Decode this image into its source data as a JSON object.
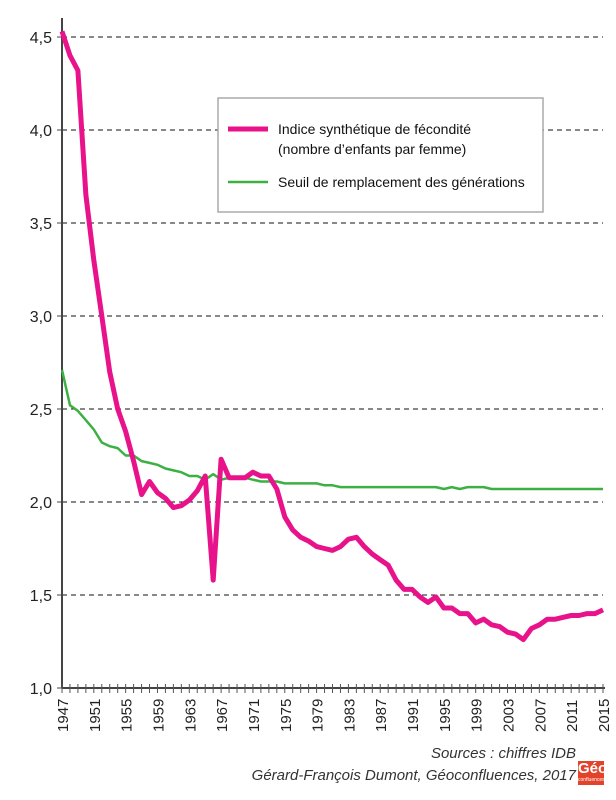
{
  "chart_data": {
    "type": "line",
    "title": "",
    "xlabel": "",
    "ylabel": "",
    "xlim": [
      1947,
      2015
    ],
    "ylim": [
      1.0,
      4.5
    ],
    "y_ticks": [
      "1,0",
      "1,5",
      "2,0",
      "2,5",
      "3,0",
      "3,5",
      "4,0",
      "4,5"
    ],
    "y_tick_values": [
      1.0,
      1.5,
      2.0,
      2.5,
      3.0,
      3.5,
      4.0,
      4.5
    ],
    "x_ticks": [
      "1947",
      "1951",
      "1955",
      "1959",
      "1963",
      "1967",
      "1971",
      "1975",
      "1979",
      "1983",
      "1987",
      "1991",
      "1995",
      "1999",
      "2003",
      "2007",
      "2011",
      "2015"
    ],
    "grid": "horizontal dashed",
    "legend_position": "top-right",
    "x": [
      1947,
      1948,
      1949,
      1950,
      1951,
      1952,
      1953,
      1954,
      1955,
      1956,
      1957,
      1958,
      1959,
      1960,
      1961,
      1962,
      1963,
      1964,
      1965,
      1966,
      1967,
      1968,
      1969,
      1970,
      1971,
      1972,
      1973,
      1974,
      1975,
      1976,
      1977,
      1978,
      1979,
      1980,
      1981,
      1982,
      1983,
      1984,
      1985,
      1986,
      1987,
      1988,
      1989,
      1990,
      1991,
      1992,
      1993,
      1994,
      1995,
      1996,
      1997,
      1998,
      1999,
      2000,
      2001,
      2002,
      2003,
      2004,
      2005,
      2006,
      2007,
      2008,
      2009,
      2010,
      2011,
      2012,
      2013,
      2014,
      2015
    ],
    "series": [
      {
        "name": "Indice synthétique de fécondité",
        "name2": "(nombre d’enfants par femme)",
        "color": "#e8128a",
        "values": [
          4.53,
          4.4,
          4.32,
          3.65,
          3.3,
          3.0,
          2.7,
          2.5,
          2.38,
          2.22,
          2.04,
          2.11,
          2.05,
          2.02,
          1.97,
          1.98,
          2.01,
          2.06,
          2.14,
          1.58,
          2.23,
          2.13,
          2.13,
          2.13,
          2.16,
          2.14,
          2.14,
          2.07,
          1.92,
          1.85,
          1.81,
          1.79,
          1.76,
          1.75,
          1.74,
          1.76,
          1.8,
          1.81,
          1.76,
          1.72,
          1.69,
          1.66,
          1.58,
          1.53,
          1.53,
          1.49,
          1.46,
          1.49,
          1.43,
          1.43,
          1.4,
          1.4,
          1.35,
          1.37,
          1.34,
          1.33,
          1.3,
          1.29,
          1.26,
          1.32,
          1.34,
          1.37,
          1.37,
          1.38,
          1.39,
          1.39,
          1.4,
          1.4,
          1.42
        ]
      },
      {
        "name": "Seuil de remplacement des générations",
        "color": "#3cb043",
        "values": [
          2.71,
          2.52,
          2.49,
          2.44,
          2.39,
          2.32,
          2.3,
          2.29,
          2.25,
          2.25,
          2.22,
          2.21,
          2.2,
          2.18,
          2.17,
          2.16,
          2.14,
          2.14,
          2.12,
          2.15,
          2.12,
          2.13,
          2.13,
          2.13,
          2.12,
          2.11,
          2.11,
          2.11,
          2.1,
          2.1,
          2.1,
          2.1,
          2.1,
          2.09,
          2.09,
          2.08,
          2.08,
          2.08,
          2.08,
          2.08,
          2.08,
          2.08,
          2.08,
          2.08,
          2.08,
          2.08,
          2.08,
          2.08,
          2.07,
          2.08,
          2.07,
          2.08,
          2.08,
          2.08,
          2.07,
          2.07,
          2.07,
          2.07,
          2.07,
          2.07,
          2.07,
          2.07,
          2.07,
          2.07,
          2.07,
          2.07,
          2.07,
          2.07,
          2.07
        ]
      }
    ]
  },
  "footer": {
    "sources": "Sources : chiffres IDB",
    "credit": "Gérard-François Dumont, Géoconfluences, 2017",
    "logo_text": "Géo",
    "logo_sub": "confluences"
  }
}
